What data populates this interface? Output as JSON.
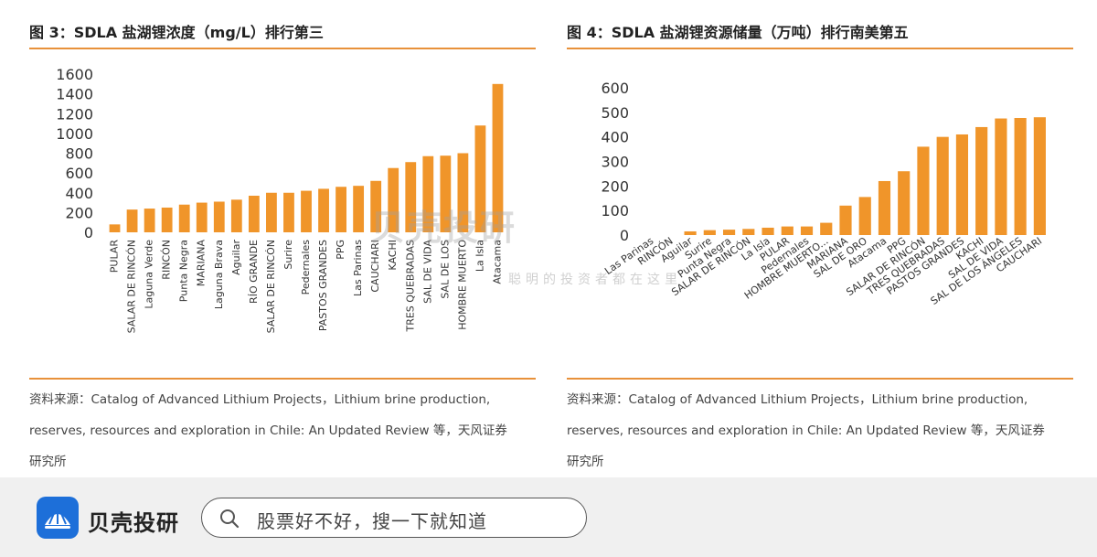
{
  "chart_data": [
    {
      "type": "bar",
      "title": "图 3：SDLA 盐湖锂浓度（mg/L）排行第三",
      "categories": [
        "PULAR",
        "SALAR DE RINCÓN",
        "Laguna Verde",
        "RINCÓN",
        "Punta Negra",
        "MARIANA",
        "Laguna Brava",
        "Aguilar",
        "RÍO GRANDE",
        "SALAR DE RINCÓN",
        "Surire",
        "Pedernales",
        "PASTOS GRANDES",
        "PPG",
        "Las Parinas",
        "CAUCHARI",
        "KACHI",
        "TRES QUEBRADAS",
        "SAL DE VIDA",
        "SAL DE LOS",
        "HOMBRE MUERTO",
        "La Isla",
        "Atacama"
      ],
      "values": [
        80,
        230,
        240,
        250,
        280,
        300,
        310,
        330,
        370,
        400,
        400,
        420,
        440,
        460,
        470,
        520,
        650,
        710,
        770,
        775,
        800,
        1080,
        1500
      ],
      "ylim": [
        0,
        1600
      ],
      "yticks": [
        0,
        200,
        400,
        600,
        800,
        1000,
        1200,
        1400,
        1600
      ],
      "grid": false,
      "bar_color": "#f0952a",
      "source_lines": [
        "资料来源：Catalog of Advanced Lithium Projects，Lithium brine production,",
        "reserves, resources and exploration in Chile: An Updated Review 等，天风证券",
        "研究所"
      ]
    },
    {
      "type": "bar",
      "title": "图 4：SDLA 盐湖锂资源储量（万吨）排行南美第五",
      "categories": [
        "Las Parinas",
        "RINCÓN",
        "Aguilar",
        "Surire",
        "Punta Negra",
        "SALAR DE RINCÓN",
        "La Isla",
        "PULAR",
        "Pedernales",
        "HOMBRE MUERTO...",
        "MARIANA",
        "SAL DE ORO",
        "Atacama",
        "PPG",
        "SALAR DE RINCÓN",
        "TRES QUEBRADAS",
        "PASTOS GRANDES",
        "KACHI",
        "SAL DE VIDA",
        "SAL DE LOS ÁNGELES",
        "CAUCHARI"
      ],
      "values": [
        0,
        0,
        15,
        20,
        22,
        25,
        30,
        35,
        35,
        50,
        120,
        155,
        220,
        260,
        360,
        400,
        410,
        440,
        475,
        477,
        480
      ],
      "ylim": [
        0,
        600
      ],
      "yticks": [
        0,
        100,
        200,
        300,
        400,
        500,
        600
      ],
      "grid": false,
      "bar_color": "#f0952a",
      "source_lines": [
        "资料来源：Catalog of Advanced Lithium Projects，Lithium brine production,",
        "reserves, resources and exploration in Chile: An Updated Review 等，天风证券",
        "研究所"
      ]
    }
  ],
  "watermark": {
    "main": "贝壳投研",
    "sub": "聪明的投资者都在这里"
  },
  "footer": {
    "brand": "贝壳投研",
    "search_placeholder": "股票好不好，搜一下就知道",
    "logo_color": "#1d6fd9"
  }
}
